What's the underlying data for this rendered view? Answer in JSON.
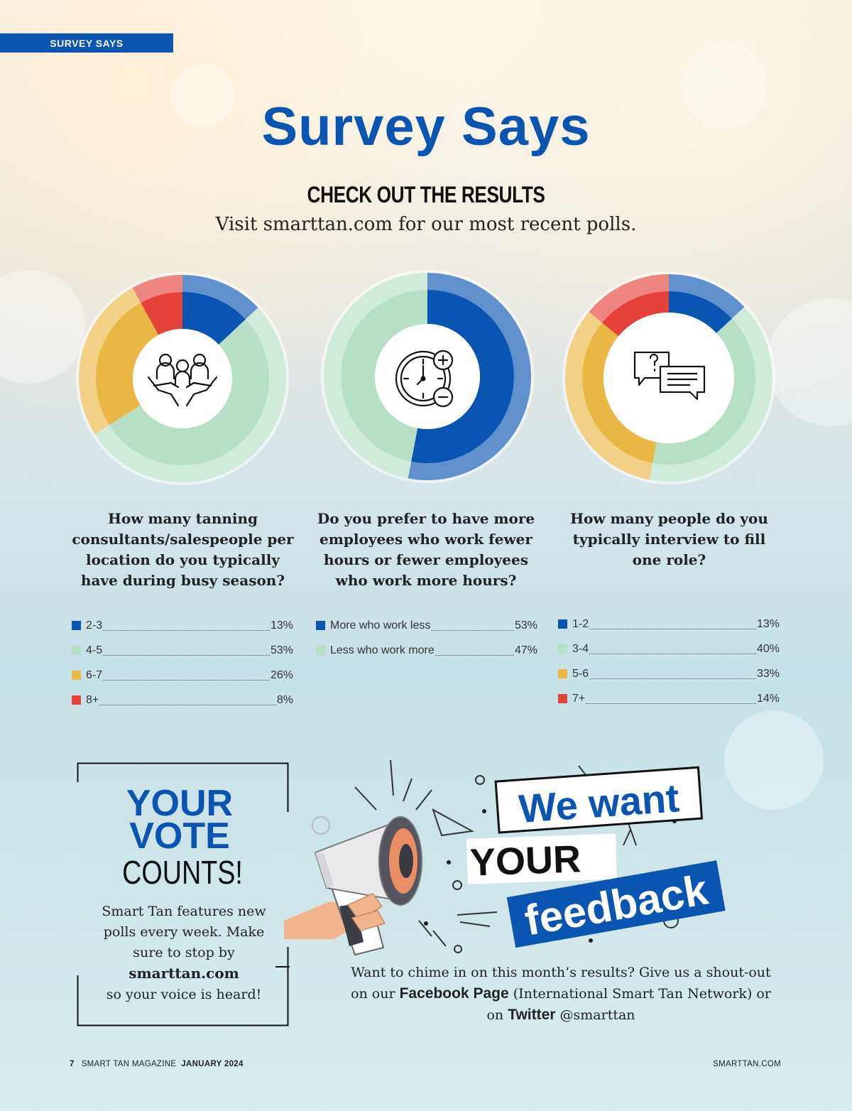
{
  "section_tab": "SURVEY SAYS",
  "title": "Survey Says",
  "subtitle": "CHECK OUT THE RESULTS",
  "visit_line": "Visit smarttan.com for our most recent polls.",
  "colors": {
    "blue": "#0b55b2",
    "green": "#b6e0c6",
    "yellow": "#ebb744",
    "red": "#e5433a"
  },
  "chart_data": [
    {
      "type": "pie",
      "variant": "donut",
      "icon": "people-hands-icon",
      "question": "How many tanning consultants/salespeople per location do you typically have during busy season?",
      "categories": [
        "2-3",
        "4-5",
        "6-7",
        "8+"
      ],
      "values": [
        13,
        53,
        26,
        8
      ],
      "value_labels": [
        "13%",
        "53%",
        "26%",
        " 8%"
      ],
      "colors": [
        "#0b55b2",
        "#b6e0c6",
        "#ebb744",
        "#e5433a"
      ]
    },
    {
      "type": "pie",
      "variant": "donut",
      "icon": "clock-plus-minus-icon",
      "question": "Do you prefer to have more employees who work fewer hours or fewer employees who work more hours?",
      "categories": [
        "More who work less",
        "Less who work more"
      ],
      "values": [
        53,
        47
      ],
      "value_labels": [
        "53%",
        "47%"
      ],
      "colors": [
        "#0b55b2",
        "#b6e0c6"
      ]
    },
    {
      "type": "pie",
      "variant": "donut",
      "icon": "chat-bubbles-icon",
      "question": "How many people do you typically interview to fill one role?",
      "categories": [
        "1-2",
        "3-4",
        "5-6",
        "7+ "
      ],
      "values": [
        13,
        40,
        33,
        14
      ],
      "value_labels": [
        "13%",
        "40%",
        "33%",
        "14%"
      ],
      "colors": [
        "#0b55b2",
        "#b6e0c6",
        "#ebb744",
        "#e5433a"
      ]
    }
  ],
  "vote": {
    "line1": "YOUR",
    "line2": "VOTE",
    "line3": "COUNTS!",
    "text1": "Smart Tan features new polls every week. Make sure to stop by",
    "site": "smarttan.com",
    "text2": "so your voice is heard!"
  },
  "feedback": {
    "headline1": "We want",
    "headline2": "YOUR",
    "headline3": "feedback",
    "text1": "Want to chime in on this month’s results? Give us a shout-out on our",
    "facebook": "Facebook Page",
    "text2": "(International Smart Tan Network) or on",
    "twitter": "Twitter",
    "handle": "@smarttan"
  },
  "footer": {
    "page_number": "7",
    "magazine": "SMART TAN MAGAZINE",
    "issue": "JANUARY 2024",
    "site": "SMARTTAN.COM"
  }
}
